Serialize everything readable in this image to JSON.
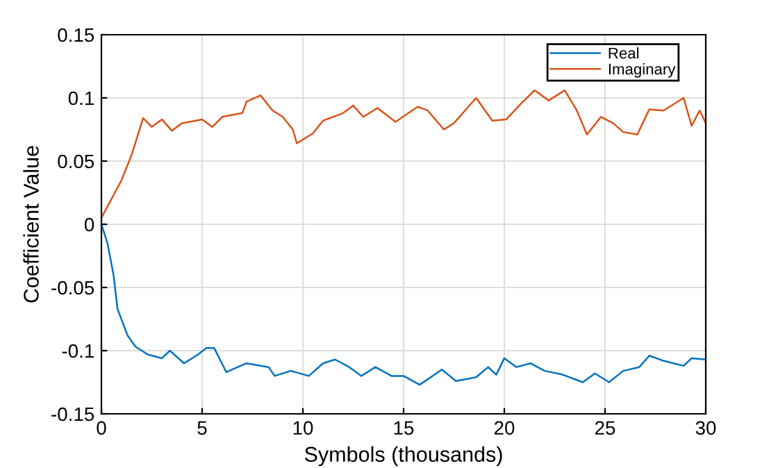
{
  "chart_data": {
    "type": "line",
    "xlabel": "Symbols (thousands)",
    "ylabel": "Coefficient Value",
    "xlim": [
      0,
      30
    ],
    "xticks": [
      0,
      5,
      10,
      15,
      20,
      25,
      30
    ],
    "ylim": [
      -0.15,
      0.15
    ],
    "yticks": [
      -0.15,
      -0.1,
      -0.05,
      0,
      0.05,
      0.1,
      0.15
    ],
    "grid": true,
    "legend": "top right",
    "marker": "none",
    "line_style": "solid",
    "series": [
      {
        "name": "Real",
        "color": "#0072bd",
        "x": [
          0,
          0.3,
          0.6,
          0.8,
          1.3,
          1.7,
          2.3,
          3,
          3.4,
          4.1,
          4.8,
          5.2,
          5.6,
          6.2,
          7.2,
          8.3,
          8.6,
          9.4,
          10.3,
          11,
          11.6,
          12.3,
          12.9,
          13.6,
          14.4,
          15,
          15.8,
          16.9,
          17.6,
          18.6,
          19.2,
          19.6,
          20,
          20.6,
          21.3,
          22,
          22.9,
          23.9,
          24.5,
          25.2,
          25.9,
          26.7,
          27.2,
          27.9,
          28.9,
          29.3,
          30
        ],
        "values": [
          0,
          -0.015,
          -0.04,
          -0.067,
          -0.088,
          -0.097,
          -0.103,
          -0.106,
          -0.1,
          -0.11,
          -0.103,
          -0.098,
          -0.098,
          -0.117,
          -0.11,
          -0.113,
          -0.12,
          -0.116,
          -0.12,
          -0.11,
          -0.107,
          -0.113,
          -0.12,
          -0.113,
          -0.12,
          -0.12,
          -0.127,
          -0.115,
          -0.124,
          -0.121,
          -0.113,
          -0.119,
          -0.106,
          -0.113,
          -0.11,
          -0.116,
          -0.119,
          -0.125,
          -0.118,
          -0.125,
          -0.116,
          -0.113,
          -0.104,
          -0.108,
          -0.112,
          -0.106,
          -0.107
        ]
      },
      {
        "name": "Imaginary",
        "color": "#d95319",
        "x": [
          0,
          0.5,
          1,
          1.5,
          2.07,
          2.5,
          3,
          3.5,
          4,
          5,
          5.5,
          6,
          7,
          7.2,
          7.9,
          8.5,
          9,
          9.5,
          9.7,
          10.5,
          11,
          12,
          12.5,
          13,
          13.7,
          14.6,
          15.7,
          16.2,
          17,
          17.5,
          18.6,
          19.4,
          20.1,
          20.8,
          21.5,
          22.2,
          23,
          23.6,
          24.1,
          24.8,
          25.4,
          25.9,
          26.6,
          27.2,
          27.9,
          28.9,
          29.3,
          29.7,
          30
        ],
        "values": [
          0.005,
          0.02,
          0.035,
          0.055,
          0.084,
          0.077,
          0.083,
          0.074,
          0.08,
          0.083,
          0.077,
          0.085,
          0.088,
          0.097,
          0.102,
          0.09,
          0.085,
          0.075,
          0.064,
          0.072,
          0.082,
          0.088,
          0.094,
          0.085,
          0.092,
          0.081,
          0.093,
          0.09,
          0.075,
          0.08,
          0.1,
          0.082,
          0.083,
          0.095,
          0.106,
          0.098,
          0.106,
          0.09,
          0.071,
          0.085,
          0.08,
          0.073,
          0.071,
          0.091,
          0.09,
          0.1,
          0.078,
          0.09,
          0.08
        ]
      }
    ]
  }
}
